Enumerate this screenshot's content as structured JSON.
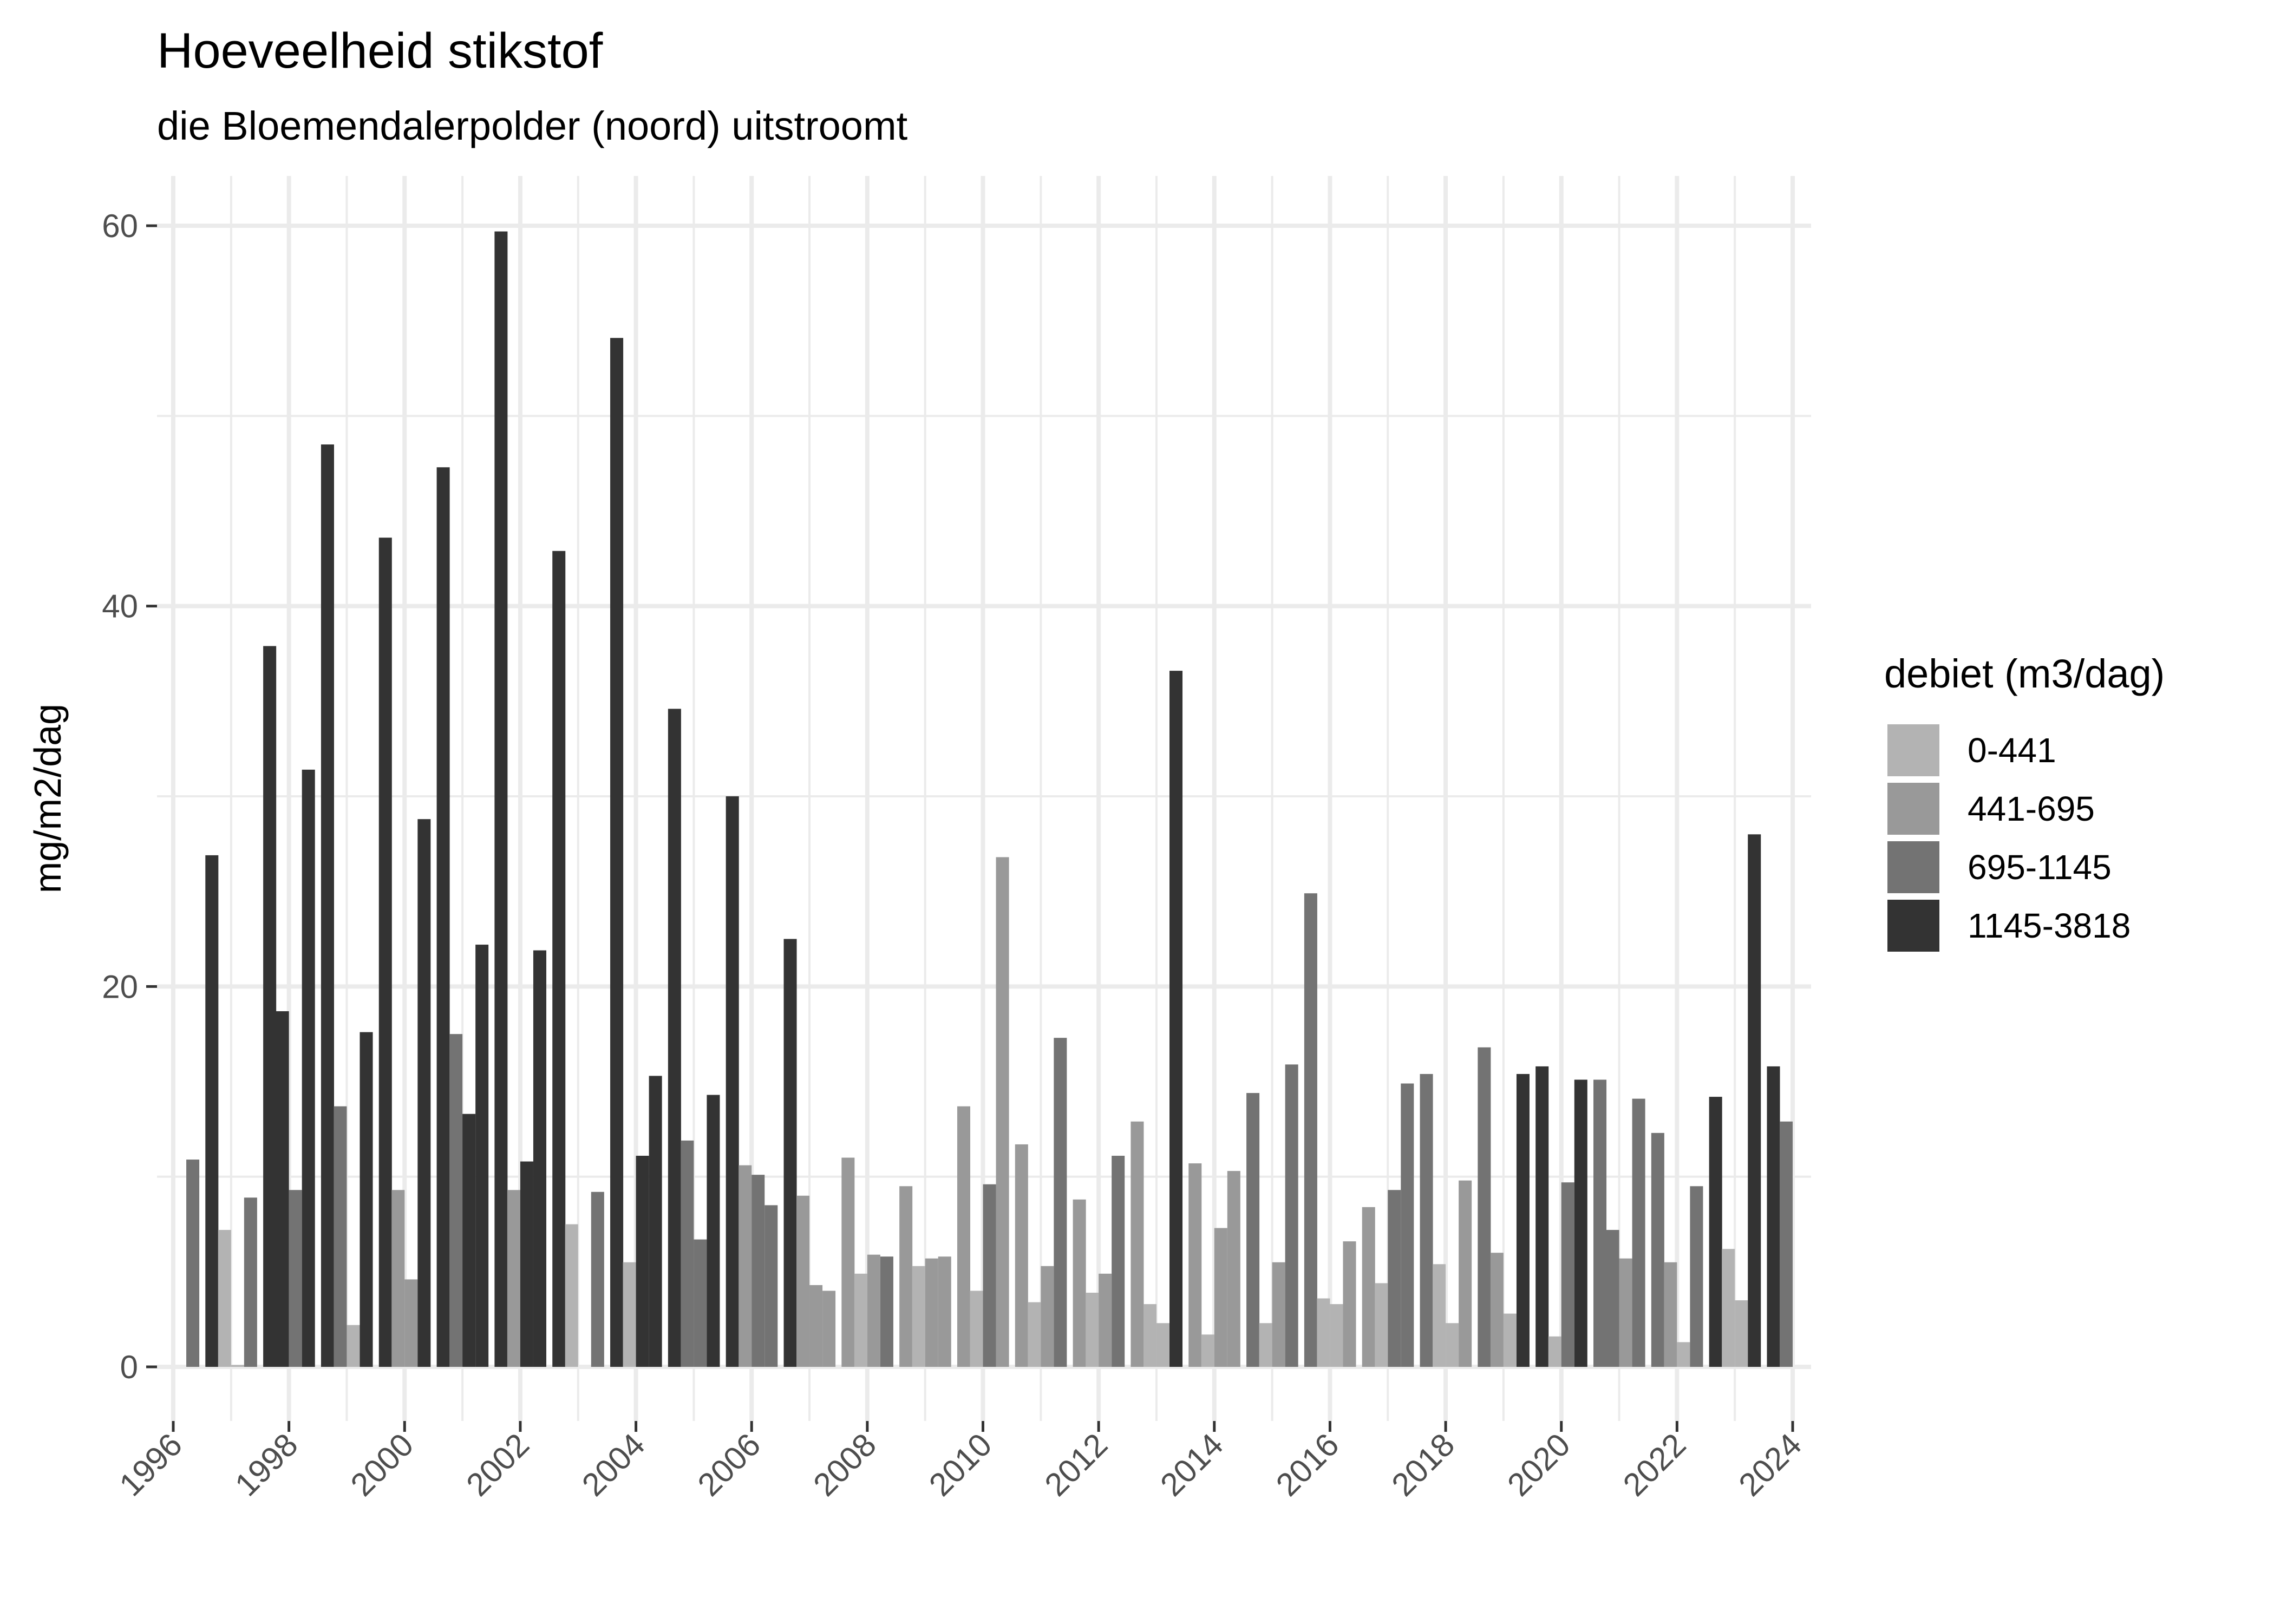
{
  "chart_data": {
    "type": "bar",
    "title": "Hoeveelheid stikstof",
    "subtitle": "die Bloemendalerpolder (noord) uitstroomt",
    "xlabel": "",
    "ylabel": "mg/m2/dag",
    "xlim": [
      1996,
      2024
    ],
    "ylim": [
      0,
      62
    ],
    "grid": true,
    "x_ticks": [
      "1996",
      "1998",
      "2000",
      "2002",
      "2004",
      "2006",
      "2008",
      "2010",
      "2012",
      "2014",
      "2016",
      "2018",
      "2020",
      "2022",
      "2024"
    ],
    "y_ticks": [
      "0",
      "20",
      "40",
      "60"
    ],
    "legend": {
      "title": "debiet (m3/dag)",
      "position": "right",
      "entries": [
        {
          "label": "0-441",
          "color": "#b3b3b3"
        },
        {
          "label": "441-695",
          "color": "#999999"
        },
        {
          "label": "695-1145",
          "color": "#737373"
        },
        {
          "label": "1145-3818",
          "color": "#333333"
        }
      ]
    },
    "bar_fields": [
      "year",
      "quarter",
      "value",
      "debiet_class_index"
    ],
    "bars": [
      [
        1996,
        2,
        10.9,
        2
      ],
      [
        1996,
        3,
        26.9,
        3
      ],
      [
        1996,
        4,
        7.2,
        0
      ],
      [
        1997,
        1,
        0.1,
        0
      ],
      [
        1997,
        2,
        8.9,
        2
      ],
      [
        1997,
        3,
        37.9,
        3
      ],
      [
        1997,
        4,
        18.7,
        3
      ],
      [
        1998,
        1,
        9.3,
        2
      ],
      [
        1998,
        2,
        31.4,
        3
      ],
      [
        1998,
        3,
        48.5,
        3
      ],
      [
        1998,
        4,
        13.7,
        2
      ],
      [
        1999,
        1,
        2.2,
        0
      ],
      [
        1999,
        2,
        17.6,
        3
      ],
      [
        1999,
        3,
        43.6,
        3
      ],
      [
        1999,
        4,
        9.3,
        1
      ],
      [
        2000,
        1,
        4.6,
        1
      ],
      [
        2000,
        2,
        28.8,
        3
      ],
      [
        2000,
        3,
        47.3,
        3
      ],
      [
        2000,
        4,
        17.5,
        2
      ],
      [
        2001,
        1,
        13.3,
        3
      ],
      [
        2001,
        2,
        22.2,
        3
      ],
      [
        2001,
        3,
        59.7,
        3
      ],
      [
        2001,
        4,
        9.3,
        1
      ],
      [
        2002,
        1,
        10.8,
        3
      ],
      [
        2002,
        2,
        21.9,
        3
      ],
      [
        2002,
        3,
        42.9,
        3
      ],
      [
        2002,
        4,
        7.5,
        0
      ],
      [
        2003,
        2,
        9.2,
        2
      ],
      [
        2003,
        3,
        54.1,
        3
      ],
      [
        2003,
        4,
        5.5,
        0
      ],
      [
        2004,
        1,
        11.1,
        3
      ],
      [
        2004,
        2,
        15.3,
        3
      ],
      [
        2004,
        3,
        34.6,
        3
      ],
      [
        2004,
        4,
        11.9,
        2
      ],
      [
        2005,
        1,
        6.7,
        2
      ],
      [
        2005,
        2,
        14.3,
        3
      ],
      [
        2005,
        3,
        30.0,
        3
      ],
      [
        2005,
        4,
        10.6,
        1
      ],
      [
        2006,
        1,
        10.1,
        2
      ],
      [
        2006,
        2,
        8.5,
        2
      ],
      [
        2006,
        3,
        22.5,
        3
      ],
      [
        2006,
        4,
        9.0,
        1
      ],
      [
        2007,
        1,
        4.3,
        1
      ],
      [
        2007,
        2,
        4.0,
        1
      ],
      [
        2007,
        3,
        11.0,
        1
      ],
      [
        2007,
        4,
        4.9,
        0
      ],
      [
        2008,
        1,
        5.9,
        1
      ],
      [
        2008,
        2,
        5.8,
        2
      ],
      [
        2008,
        3,
        9.5,
        1
      ],
      [
        2008,
        4,
        5.3,
        0
      ],
      [
        2009,
        1,
        5.7,
        1
      ],
      [
        2009,
        2,
        5.8,
        1
      ],
      [
        2009,
        3,
        13.7,
        1
      ],
      [
        2009,
        4,
        4.0,
        0
      ],
      [
        2010,
        1,
        9.6,
        2
      ],
      [
        2010,
        2,
        26.8,
        1
      ],
      [
        2010,
        3,
        11.7,
        1
      ],
      [
        2010,
        4,
        3.4,
        0
      ],
      [
        2011,
        1,
        5.3,
        1
      ],
      [
        2011,
        2,
        17.3,
        2
      ],
      [
        2011,
        3,
        8.8,
        1
      ],
      [
        2011,
        4,
        3.9,
        0
      ],
      [
        2012,
        1,
        4.9,
        1
      ],
      [
        2012,
        2,
        11.1,
        2
      ],
      [
        2012,
        3,
        12.9,
        1
      ],
      [
        2012,
        4,
        3.3,
        0
      ],
      [
        2013,
        1,
        2.3,
        0
      ],
      [
        2013,
        2,
        36.6,
        3
      ],
      [
        2013,
        3,
        10.7,
        1
      ],
      [
        2013,
        4,
        1.7,
        0
      ],
      [
        2014,
        1,
        7.3,
        1
      ],
      [
        2014,
        2,
        10.3,
        1
      ],
      [
        2014,
        3,
        14.4,
        2
      ],
      [
        2014,
        4,
        2.3,
        0
      ],
      [
        2015,
        1,
        5.5,
        1
      ],
      [
        2015,
        2,
        15.9,
        2
      ],
      [
        2015,
        3,
        24.9,
        2
      ],
      [
        2015,
        4,
        3.6,
        0
      ],
      [
        2016,
        1,
        3.3,
        0
      ],
      [
        2016,
        2,
        6.6,
        1
      ],
      [
        2016,
        3,
        8.4,
        1
      ],
      [
        2016,
        4,
        4.4,
        0
      ],
      [
        2017,
        1,
        9.3,
        2
      ],
      [
        2017,
        2,
        14.9,
        2
      ],
      [
        2017,
        3,
        15.4,
        2
      ],
      [
        2017,
        4,
        5.4,
        0
      ],
      [
        2018,
        1,
        2.3,
        0
      ],
      [
        2018,
        2,
        9.8,
        1
      ],
      [
        2018,
        3,
        16.8,
        2
      ],
      [
        2018,
        4,
        6.0,
        1
      ],
      [
        2019,
        1,
        2.8,
        0
      ],
      [
        2019,
        2,
        15.4,
        3
      ],
      [
        2019,
        3,
        15.8,
        3
      ],
      [
        2019,
        4,
        1.6,
        0
      ],
      [
        2020,
        1,
        9.7,
        2
      ],
      [
        2020,
        2,
        15.1,
        3
      ],
      [
        2020,
        3,
        15.1,
        2
      ],
      [
        2020,
        4,
        7.2,
        2
      ],
      [
        2021,
        1,
        5.7,
        1
      ],
      [
        2021,
        2,
        14.1,
        2
      ],
      [
        2021,
        3,
        12.3,
        2
      ],
      [
        2021,
        4,
        5.5,
        1
      ],
      [
        2022,
        1,
        1.3,
        0
      ],
      [
        2022,
        2,
        9.5,
        2
      ],
      [
        2022,
        3,
        14.2,
        3
      ],
      [
        2022,
        4,
        6.2,
        0
      ],
      [
        2023,
        1,
        3.5,
        0
      ],
      [
        2023,
        2,
        28.0,
        3
      ],
      [
        2023,
        3,
        15.8,
        3
      ],
      [
        2023,
        4,
        12.9,
        2
      ]
    ]
  }
}
